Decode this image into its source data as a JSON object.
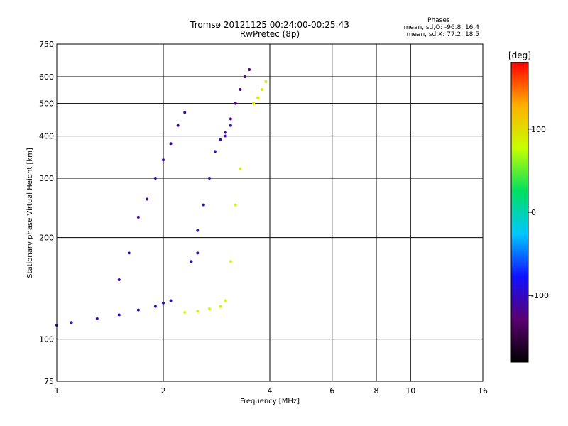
{
  "chart_data": {
    "type": "scatter",
    "title": "Tromsø 20121125 00:24:00-00:25:43",
    "subtitle": "RwPretec (8p)",
    "phase_title": "Phases",
    "phase_stats": [
      "mean, sd,O: -96.8, 16.4",
      "mean, sd,X: 77.2, 18.5"
    ],
    "xlabel": "Frequency [MHz]",
    "ylabel": "Stationary phase Virtual Height [km]",
    "x_scale": "log",
    "y_scale": "log",
    "xlim": [
      1,
      16
    ],
    "ylim": [
      75,
      750
    ],
    "x_ticks": [
      1,
      2,
      4,
      6,
      8,
      10,
      16
    ],
    "y_ticks": [
      75,
      100,
      200,
      300,
      400,
      500,
      600,
      750
    ],
    "grid": true,
    "colorbar": {
      "label": "[deg]",
      "range": [
        -180,
        180
      ],
      "ticks": [
        100,
        0,
        -100
      ],
      "colors": [
        "#000000",
        "#5a0070",
        "#1010ff",
        "#00c8ff",
        "#00e060",
        "#c8ff00",
        "#ffb000",
        "#ff0000"
      ]
    },
    "traces": [
      {
        "name": "O",
        "phase": -100,
        "x": [
          1.0,
          1.1,
          1.3,
          1.5,
          1.7,
          1.9,
          2.0,
          2.1
        ],
        "y": [
          110,
          112,
          115,
          118,
          122,
          125,
          128,
          130
        ]
      },
      {
        "name": "O",
        "phase": -110,
        "x": [
          1.5,
          1.6,
          1.7,
          1.8,
          1.9,
          2.0,
          2.1,
          2.2,
          2.3,
          2.5
        ],
        "y": [
          150,
          180,
          230,
          260,
          300,
          340,
          380,
          430,
          470,
          180
        ]
      },
      {
        "name": "O",
        "phase": -100,
        "x": [
          2.4,
          2.5,
          2.6,
          2.7,
          2.8,
          2.9,
          3.0,
          3.1
        ],
        "y": [
          170,
          210,
          250,
          300,
          360,
          390,
          410,
          430
        ]
      },
      {
        "name": "O",
        "phase": -120,
        "x": [
          3.0,
          3.1,
          3.2,
          3.3,
          3.4,
          3.5
        ],
        "y": [
          400,
          450,
          500,
          550,
          600,
          630
        ]
      },
      {
        "name": "X",
        "phase": 80,
        "x": [
          2.3,
          2.5,
          2.7,
          2.9,
          3.0,
          3.1,
          3.2,
          3.3
        ],
        "y": [
          120,
          121,
          123,
          125,
          130,
          170,
          250,
          320
        ]
      },
      {
        "name": "X",
        "phase": 90,
        "x": [
          3.6,
          3.7,
          3.8,
          3.9
        ],
        "y": [
          500,
          520,
          550,
          580
        ]
      }
    ]
  }
}
